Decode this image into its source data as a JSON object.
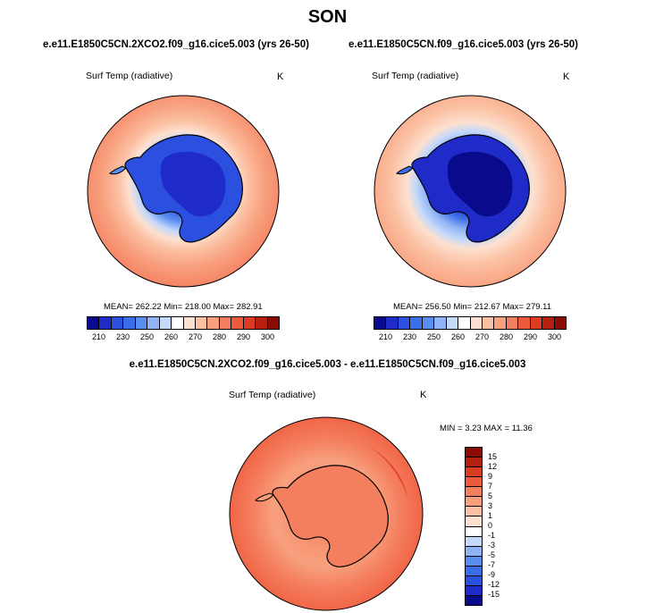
{
  "title": "SON",
  "panels": [
    {
      "case_title": "e.e11.E1850C5CN.2XCO2.f09_g16.cice5.003 (yrs 26-50)",
      "variable": "Surf Temp (radiative)",
      "units": "K",
      "stats": "MEAN= 262.22  Min= 218.00  Max= 282.91"
    },
    {
      "case_title": "e.e11.E1850C5CN.f09_g16.cice5.003 (yrs 26-50)",
      "variable": "Surf Temp (radiative)",
      "units": "K",
      "stats": "MEAN= 256.50  Min= 212.67  Max= 279.11"
    }
  ],
  "colorbar": {
    "tick_labels": [
      "210",
      "230",
      "250",
      "260",
      "270",
      "280",
      "290",
      "300"
    ],
    "colors": [
      "#0a0a8c",
      "#1f2bc9",
      "#2b50e0",
      "#3a6ee8",
      "#5a8df0",
      "#8fb3f5",
      "#c5d9fa",
      "#ffffff",
      "#fde0cf",
      "#fbc0a2",
      "#f8a07e",
      "#f47f5f",
      "#ee5b3c",
      "#dc3c22",
      "#b51f10",
      "#8a0c04"
    ]
  },
  "diff": {
    "title": "e.e11.E1850C5CN.2XCO2.f09_g16.cice5.003 - e.e11.E1850C5CN.f09_g16.cice5.003",
    "variable": "Surf Temp (radiative)",
    "units": "K",
    "stats": "MIN =   3.23 MAX =  11.36",
    "colorbar": {
      "tick_labels": [
        "15",
        "12",
        "9",
        "7",
        "5",
        "3",
        "1",
        "0",
        "-1",
        "-3",
        "-5",
        "-7",
        "-9",
        "-12",
        "-15"
      ],
      "colors": [
        "#8a0c04",
        "#b51f10",
        "#dc3c22",
        "#ee5b3c",
        "#f47f5f",
        "#f8a07e",
        "#fbc0a2",
        "#fde0cf",
        "#ffffff",
        "#c5d9fa",
        "#8fb3f5",
        "#5a8df0",
        "#3a6ee8",
        "#2b50e0",
        "#1f2bc9",
        "#0a0a8c"
      ]
    }
  }
}
